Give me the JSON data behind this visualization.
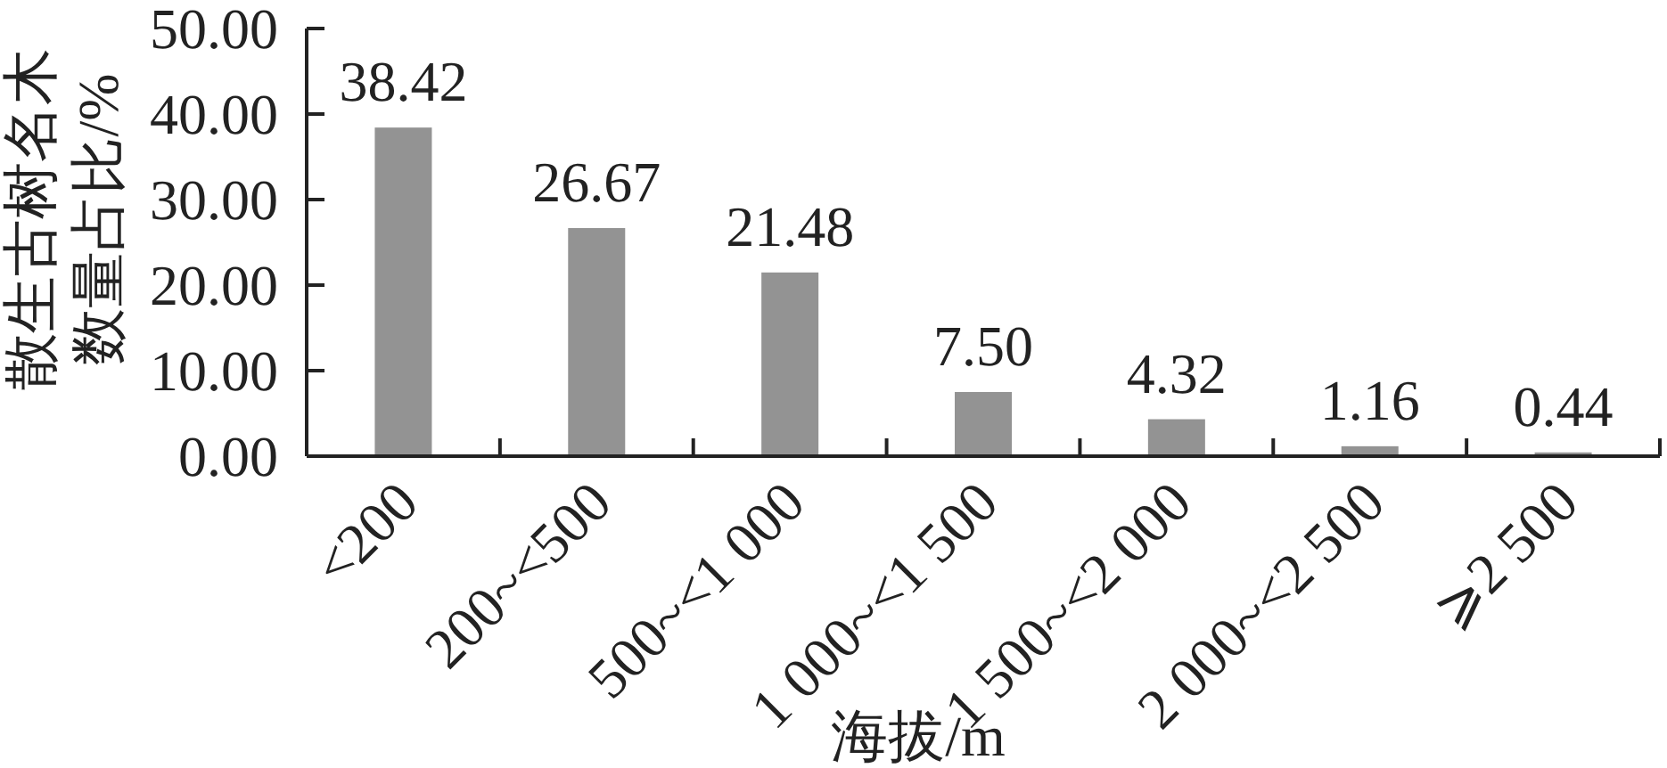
{
  "chart_data": {
    "type": "bar",
    "xlabel": "海拔/m",
    "ylabel": "散生古树名木数量占比/%",
    "categories": [
      "<200",
      "200~<500",
      "500~<1 000",
      "1 000~<1 500",
      "1 500~<2 000",
      "2 000~<2 500",
      "⩾2 500"
    ],
    "values": [
      38.42,
      26.67,
      21.48,
      7.5,
      4.32,
      1.16,
      0.44
    ],
    "color": "#939393",
    "value_labels": [
      "38.42",
      "26.67",
      "21.48",
      "7.50",
      "4.32",
      "1.16",
      "0.44"
    ],
    "ylim": [
      0,
      50
    ],
    "yticks": [
      {
        "value": 0,
        "label": "0.00"
      },
      {
        "value": 10,
        "label": "10.00"
      },
      {
        "value": 20,
        "label": "20.00"
      },
      {
        "value": 30,
        "label": "30.00"
      },
      {
        "value": 40,
        "label": "40.00"
      },
      {
        "value": 50,
        "label": "50.00"
      }
    ],
    "grid": false
  }
}
